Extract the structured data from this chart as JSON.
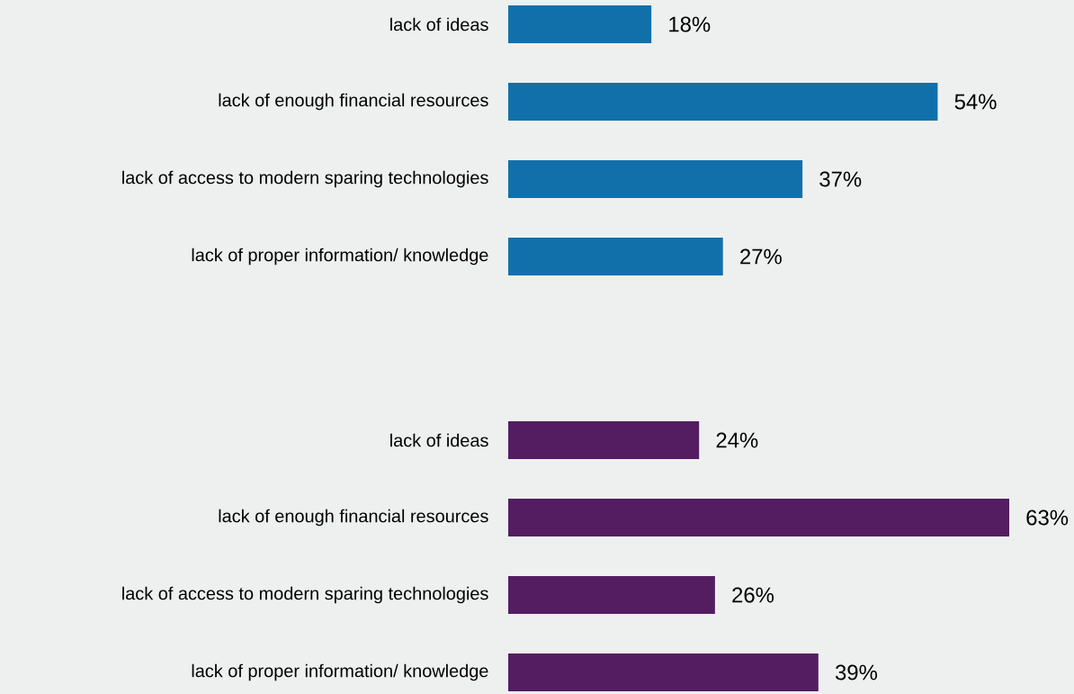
{
  "chart_data": [
    {
      "type": "bar",
      "orientation": "horizontal",
      "categories": [
        "lack of ideas",
        "lack of enough financial resources",
        "lack of access to modern sparing technologies",
        "lack of proper information/ knowledge"
      ],
      "values": [
        18,
        54,
        37,
        27
      ],
      "color": "#1170aa",
      "value_labels": [
        "18%",
        "54%",
        "37%",
        "27%"
      ]
    },
    {
      "type": "bar",
      "orientation": "horizontal",
      "categories": [
        "lack of ideas",
        "lack of enough financial resources",
        "lack of access to modern sparing technologies",
        "lack of proper information/ knowledge"
      ],
      "values": [
        24,
        63,
        26,
        39
      ],
      "color": "#541d62",
      "value_labels": [
        "24%",
        "63%",
        "26%",
        "39%"
      ]
    }
  ]
}
